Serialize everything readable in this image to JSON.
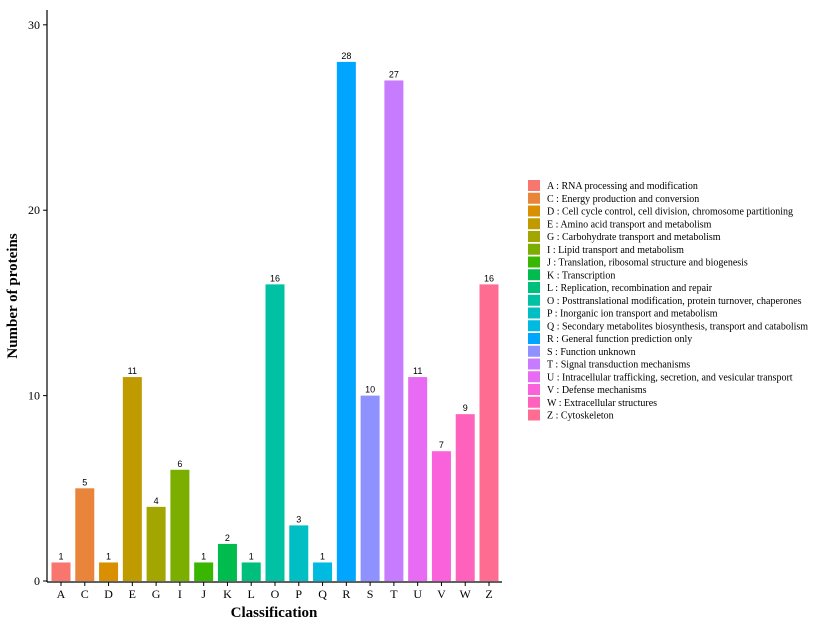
{
  "chart_data": {
    "type": "bar",
    "xlabel": "Classification",
    "ylabel": "Number of proteins",
    "ylim": [
      0,
      30.8
    ],
    "yticks": [
      0,
      10,
      20,
      30
    ],
    "grid": false,
    "legend_position": "right",
    "categories": [
      "A",
      "C",
      "D",
      "E",
      "G",
      "I",
      "J",
      "K",
      "L",
      "O",
      "P",
      "Q",
      "R",
      "S",
      "T",
      "U",
      "V",
      "W",
      "Z"
    ],
    "values": [
      1,
      5,
      1,
      11,
      4,
      6,
      1,
      2,
      1,
      16,
      3,
      1,
      28,
      10,
      27,
      11,
      7,
      9,
      16
    ],
    "colors": [
      "#F8766D",
      "#E8853A",
      "#D89000",
      "#C09B00",
      "#A3A500",
      "#7CAE00",
      "#39B600",
      "#00BB4E",
      "#00BF7D",
      "#00C1A3",
      "#00BFC4",
      "#00BAE0",
      "#00A5FF",
      "#8F91FF",
      "#C77CFF",
      "#E76BF3",
      "#FA62DB",
      "#FF62BC",
      "#FF6C91"
    ],
    "legend": [
      "A : RNA processing and modification",
      "C : Energy production and conversion",
      "D : Cell cycle control, cell division, chromosome partitioning",
      "E : Amino acid transport and metabolism",
      "G : Carbohydrate transport and metabolism",
      "I : Lipid transport and metabolism",
      "J : Translation, ribosomal structure and biogenesis",
      "K : Transcription",
      "L : Replication, recombination and repair",
      "O : Posttranslational modification, protein turnover, chaperones",
      "P : Inorganic ion transport and metabolism",
      "Q : Secondary metabolites biosynthesis, transport and catabolism",
      "R : General function prediction only",
      "S : Function unknown",
      "T : Signal transduction mechanisms",
      "U : Intracellular trafficking, secretion, and vesicular transport",
      "V : Defense mechanisms",
      "W : Extracellular structures",
      "Z : Cytoskeleton"
    ]
  }
}
